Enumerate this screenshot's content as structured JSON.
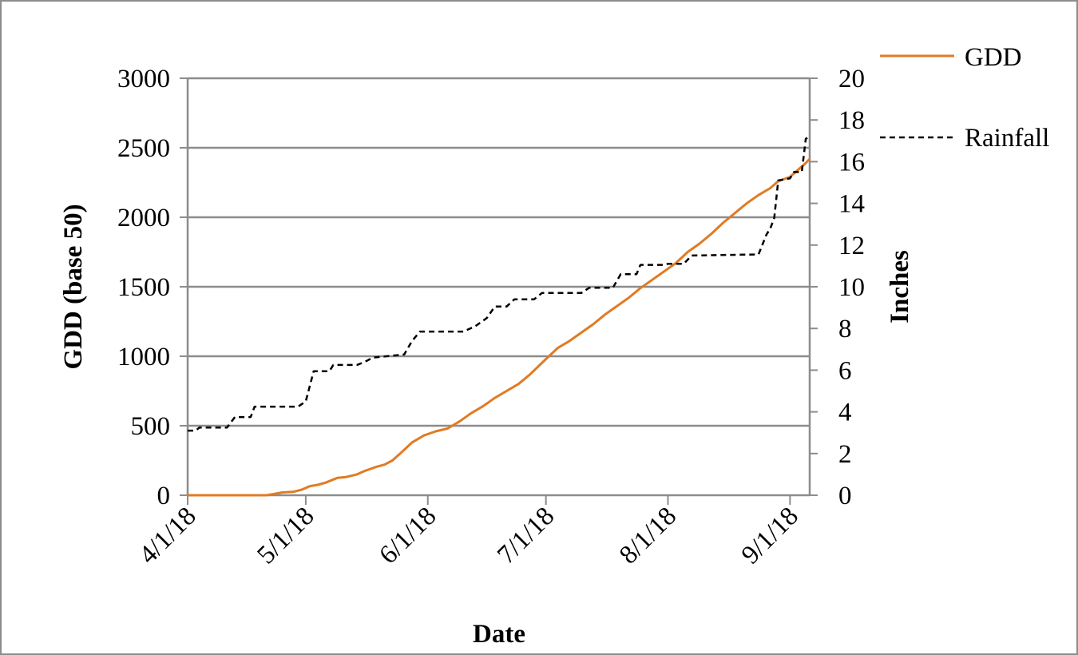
{
  "chart_data": {
    "type": "line",
    "title": "",
    "xlabel": "Date",
    "ylabel": "GDD (base 50)",
    "y2label": "Inches",
    "x_range": [
      "4/1/18",
      "9/6/18"
    ],
    "ylim": [
      0,
      3000
    ],
    "y2lim": [
      0,
      20
    ],
    "x_ticks": [
      "4/1/18",
      "5/1/18",
      "6/1/18",
      "7/1/18",
      "8/1/18",
      "9/1/18"
    ],
    "y_ticks": [
      0,
      500,
      1000,
      1500,
      2000,
      2500,
      3000
    ],
    "y2_ticks": [
      0,
      2,
      4,
      6,
      8,
      10,
      12,
      14,
      16,
      18,
      20
    ],
    "grid": "horizontal major gridlines on",
    "legend_position": "top-right, outside plot",
    "series": [
      {
        "name": "GDD",
        "axis": "left",
        "color": "#E07B24",
        "style": "solid",
        "points": [
          [
            "4/1/18",
            0
          ],
          [
            "4/21/18",
            0
          ],
          [
            "4/23/18",
            10
          ],
          [
            "4/25/18",
            20
          ],
          [
            "4/28/18",
            25
          ],
          [
            "4/30/18",
            40
          ],
          [
            "5/2/18",
            65
          ],
          [
            "5/4/18",
            75
          ],
          [
            "5/6/18",
            90
          ],
          [
            "5/9/18",
            125
          ],
          [
            "5/11/18",
            130
          ],
          [
            "5/14/18",
            150
          ],
          [
            "5/16/18",
            175
          ],
          [
            "5/19/18",
            205
          ],
          [
            "5/21/18",
            220
          ],
          [
            "5/23/18",
            250
          ],
          [
            "5/25/18",
            300
          ],
          [
            "5/28/18",
            380
          ],
          [
            "5/31/18",
            430
          ],
          [
            "6/3/18",
            460
          ],
          [
            "6/6/18",
            480
          ],
          [
            "6/9/18",
            530
          ],
          [
            "6/12/18",
            590
          ],
          [
            "6/15/18",
            640
          ],
          [
            "6/18/18",
            700
          ],
          [
            "6/21/18",
            750
          ],
          [
            "6/24/18",
            800
          ],
          [
            "6/27/18",
            870
          ],
          [
            "7/1/18",
            980
          ],
          [
            "7/4/18",
            1060
          ],
          [
            "7/7/18",
            1110
          ],
          [
            "7/10/18",
            1170
          ],
          [
            "7/13/18",
            1230
          ],
          [
            "7/16/18",
            1300
          ],
          [
            "7/19/18",
            1360
          ],
          [
            "7/22/18",
            1420
          ],
          [
            "7/25/18",
            1490
          ],
          [
            "7/28/18",
            1550
          ],
          [
            "7/31/18",
            1610
          ],
          [
            "8/3/18",
            1670
          ],
          [
            "8/6/18",
            1750
          ],
          [
            "8/9/18",
            1810
          ],
          [
            "8/12/18",
            1880
          ],
          [
            "8/15/18",
            1960
          ],
          [
            "8/18/18",
            2030
          ],
          [
            "8/21/18",
            2100
          ],
          [
            "8/24/18",
            2160
          ],
          [
            "8/27/18",
            2210
          ],
          [
            "8/29/18",
            2260
          ],
          [
            "9/1/18",
            2290
          ],
          [
            "9/3/18",
            2340
          ],
          [
            "9/5/18",
            2390
          ],
          [
            "9/6/18",
            2420
          ]
        ]
      },
      {
        "name": "Rainfall",
        "axis": "right",
        "color": "#000000",
        "style": "dashed",
        "points": [
          [
            "4/1/18",
            3.1
          ],
          [
            "4/3/18",
            3.1
          ],
          [
            "4/4/18",
            3.25
          ],
          [
            "4/11/18",
            3.25
          ],
          [
            "4/13/18",
            3.75
          ],
          [
            "4/17/18",
            3.75
          ],
          [
            "4/18/18",
            4.25
          ],
          [
            "4/29/18",
            4.25
          ],
          [
            "5/1/18",
            4.5
          ],
          [
            "5/3/18",
            5.95
          ],
          [
            "5/7/18",
            5.95
          ],
          [
            "5/8/18",
            6.25
          ],
          [
            "5/14/18",
            6.25
          ],
          [
            "5/16/18",
            6.4
          ],
          [
            "5/18/18",
            6.6
          ],
          [
            "5/26/18",
            6.75
          ],
          [
            "5/28/18",
            7.4
          ],
          [
            "5/30/18",
            7.85
          ],
          [
            "6/10/18",
            7.85
          ],
          [
            "6/13/18",
            8.1
          ],
          [
            "6/16/18",
            8.5
          ],
          [
            "6/18/18",
            9.05
          ],
          [
            "6/21/18",
            9.05
          ],
          [
            "6/23/18",
            9.4
          ],
          [
            "6/28/18",
            9.4
          ],
          [
            "6/30/18",
            9.7
          ],
          [
            "7/10/18",
            9.7
          ],
          [
            "7/12/18",
            9.95
          ],
          [
            "7/18/18",
            9.95
          ],
          [
            "7/20/18",
            10.6
          ],
          [
            "7/24/18",
            10.6
          ],
          [
            "7/25/18",
            11.05
          ],
          [
            "7/31/18",
            11.05
          ],
          [
            "8/1/18",
            11.1
          ],
          [
            "8/5/18",
            11.1
          ],
          [
            "8/7/18",
            11.5
          ],
          [
            "8/24/18",
            11.55
          ],
          [
            "8/26/18",
            12.5
          ],
          [
            "8/27/18",
            12.8
          ],
          [
            "8/28/18",
            13.3
          ],
          [
            "8/29/18",
            15.1
          ],
          [
            "9/1/18",
            15.2
          ],
          [
            "9/2/18",
            15.5
          ],
          [
            "9/4/18",
            15.5
          ],
          [
            "9/5/18",
            17.1
          ],
          [
            "9/6/18",
            17.2
          ]
        ]
      }
    ]
  }
}
